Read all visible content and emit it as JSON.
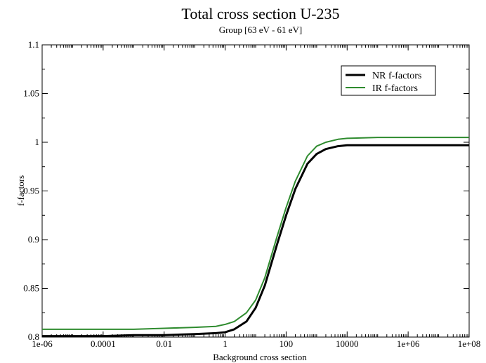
{
  "chart_data": {
    "type": "line",
    "title": "Total cross section U-235",
    "subtitle": "Group  [63 eV - 61 eV]",
    "xlabel": "Background cross section",
    "ylabel": "f-factors",
    "xscale": "log",
    "xlim": [
      1e-06,
      100000000.0
    ],
    "ylim": [
      0.8,
      1.1
    ],
    "grid": false,
    "legend_position": "top-right",
    "x_ticks": [
      {
        "value": 1e-06,
        "label": "1e-06"
      },
      {
        "value": 0.0001,
        "label": "0.0001"
      },
      {
        "value": 0.01,
        "label": "0.01"
      },
      {
        "value": 1,
        "label": "1"
      },
      {
        "value": 100,
        "label": "100"
      },
      {
        "value": 10000,
        "label": "10000"
      },
      {
        "value": 1000000,
        "label": "1e+06"
      },
      {
        "value": 100000000,
        "label": "1e+08"
      }
    ],
    "y_ticks": [
      {
        "value": 0.8,
        "label": "0.8"
      },
      {
        "value": 0.85,
        "label": "0.85"
      },
      {
        "value": 0.9,
        "label": "0.9"
      },
      {
        "value": 0.95,
        "label": "0.95"
      },
      {
        "value": 1.0,
        "label": "1"
      },
      {
        "value": 1.05,
        "label": "1.05"
      },
      {
        "value": 1.1,
        "label": "1.1"
      }
    ],
    "series": [
      {
        "name": "NR f-factors",
        "color": "#000000",
        "x": [
          1e-06,
          1e-05,
          0.0001,
          0.001,
          0.01,
          0.1,
          0.5,
          1,
          2,
          5,
          10,
          20,
          50,
          100,
          200,
          500,
          1000,
          2000,
          5000,
          10000,
          100000,
          1000000,
          10000000,
          100000000
        ],
        "y": [
          0.801,
          0.801,
          0.801,
          0.802,
          0.802,
          0.803,
          0.804,
          0.805,
          0.808,
          0.816,
          0.83,
          0.853,
          0.895,
          0.925,
          0.952,
          0.978,
          0.988,
          0.993,
          0.996,
          0.997,
          0.997,
          0.997,
          0.997,
          0.997
        ]
      },
      {
        "name": "IR f-factors",
        "color": "#2e8b2e",
        "x": [
          1e-06,
          1e-05,
          0.0001,
          0.001,
          0.01,
          0.1,
          0.5,
          1,
          2,
          5,
          10,
          20,
          50,
          100,
          200,
          500,
          1000,
          2000,
          5000,
          10000,
          100000,
          1000000,
          10000000,
          100000000
        ],
        "y": [
          0.808,
          0.808,
          0.808,
          0.808,
          0.809,
          0.81,
          0.811,
          0.813,
          0.816,
          0.825,
          0.838,
          0.861,
          0.903,
          0.933,
          0.96,
          0.986,
          0.996,
          1.0,
          1.003,
          1.004,
          1.005,
          1.005,
          1.005,
          1.005
        ]
      }
    ]
  }
}
